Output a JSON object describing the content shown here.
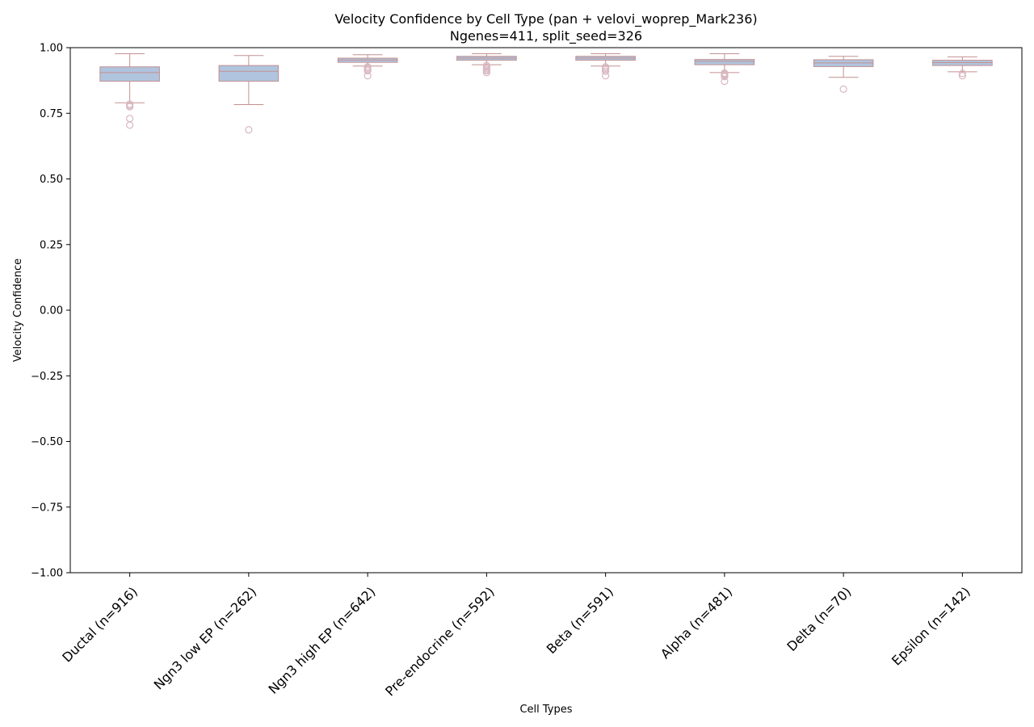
{
  "chart_data": {
    "type": "box",
    "title_line1": "Velocity Confidence by Cell Type (pan + velovi_woprep_Mark236)",
    "title_line2": "Ngenes=411, split_seed=326",
    "xlabel": "Cell Types",
    "ylabel": "Velocity Confidence",
    "ylim": [
      -1.0,
      1.0
    ],
    "yticks": [
      -1.0,
      -0.75,
      -0.5,
      -0.25,
      0.0,
      0.25,
      0.5,
      0.75,
      1.0
    ],
    "ytick_labels": [
      "−1.00",
      "−0.75",
      "−0.50",
      "−0.25",
      "0.00",
      "0.25",
      "0.50",
      "0.75",
      "1.00"
    ],
    "colors": {
      "box_fill": "#b0c4de",
      "box_edge": "#c49090",
      "median": "#c49090",
      "whisker": "#c49090",
      "flier": "#d8b8c0"
    },
    "categories": [
      {
        "label": "Ductal (n=916)",
        "whislo": 0.79,
        "q1": 0.872,
        "median": 0.905,
        "q3": 0.927,
        "whishi": 0.977,
        "fliers": [
          0.785,
          0.78,
          0.775,
          0.73,
          0.705
        ]
      },
      {
        "label": "Ngn3 low EP (n=262)",
        "whislo": 0.783,
        "q1": 0.872,
        "median": 0.91,
        "q3": 0.932,
        "whishi": 0.97,
        "fliers": [
          0.687
        ]
      },
      {
        "label": "Ngn3 high EP (n=642)",
        "whislo": 0.93,
        "q1": 0.944,
        "median": 0.953,
        "q3": 0.96,
        "whishi": 0.973,
        "fliers": [
          0.927,
          0.922,
          0.917,
          0.912,
          0.893
        ]
      },
      {
        "label": "Pre-endocrine (n=592)",
        "whislo": 0.935,
        "q1": 0.952,
        "median": 0.96,
        "q3": 0.967,
        "whishi": 0.977,
        "fliers": [
          0.932,
          0.927,
          0.922,
          0.917,
          0.912,
          0.905
        ]
      },
      {
        "label": "Beta (n=591)",
        "whislo": 0.93,
        "q1": 0.952,
        "median": 0.96,
        "q3": 0.967,
        "whishi": 0.977,
        "fliers": [
          0.927,
          0.922,
          0.917,
          0.91,
          0.893
        ]
      },
      {
        "label": "Alpha (n=481)",
        "whislo": 0.905,
        "q1": 0.935,
        "median": 0.948,
        "q3": 0.955,
        "whishi": 0.977,
        "fliers": [
          0.903,
          0.9,
          0.897,
          0.893,
          0.89,
          0.872
        ]
      },
      {
        "label": "Delta (n=70)",
        "whislo": 0.887,
        "q1": 0.928,
        "median": 0.942,
        "q3": 0.954,
        "whishi": 0.967,
        "fliers": [
          0.842
        ]
      },
      {
        "label": "Epsilon (n=142)",
        "whislo": 0.908,
        "q1": 0.932,
        "median": 0.943,
        "q3": 0.952,
        "whishi": 0.965,
        "fliers": [
          0.902,
          0.893
        ]
      }
    ]
  }
}
